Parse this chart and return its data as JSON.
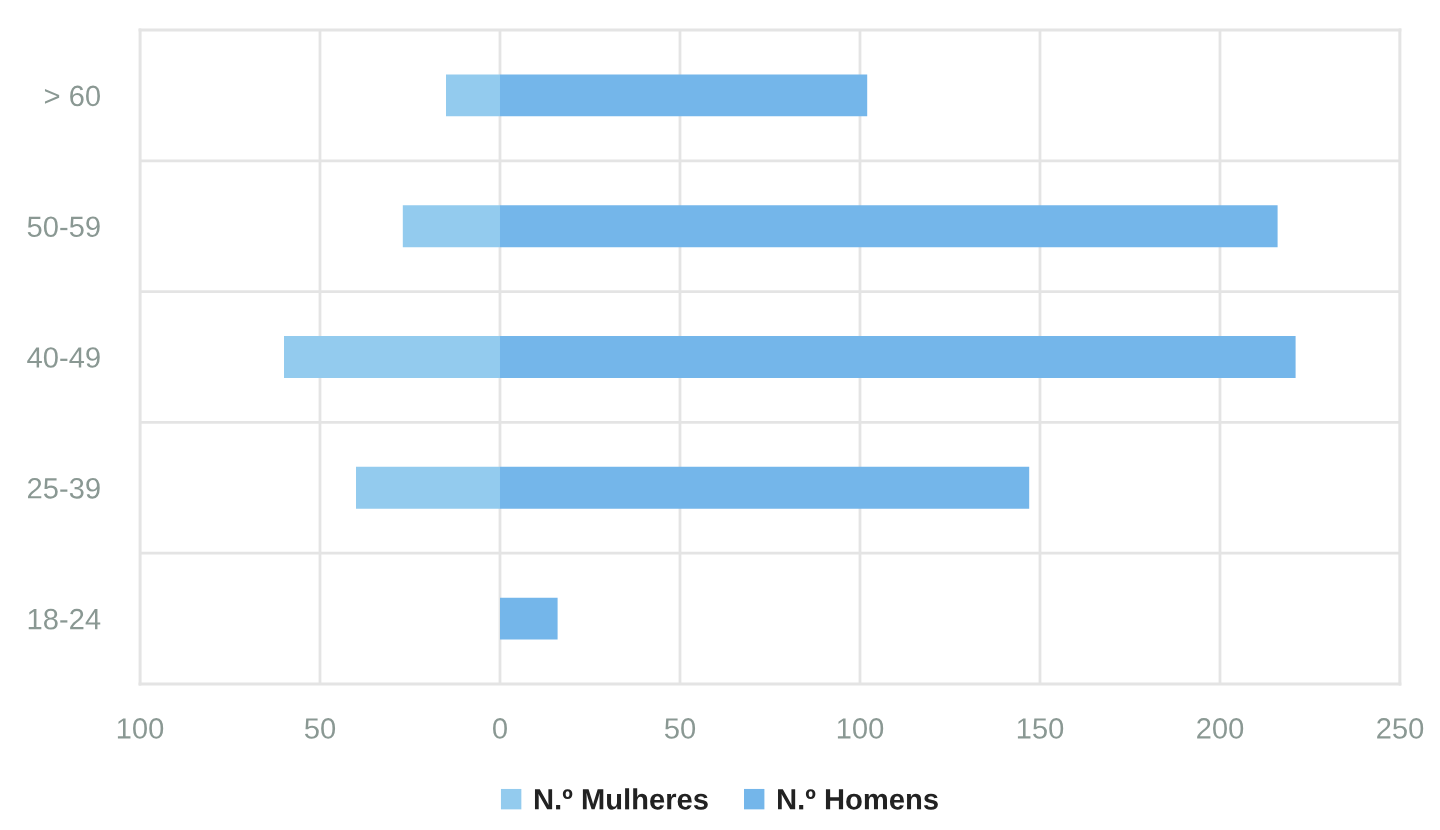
{
  "chart_data": {
    "type": "bar",
    "orientation": "horizontal",
    "stacked": true,
    "categories": [
      "> 60",
      "50-59",
      "40-49",
      "25-39",
      "18-24"
    ],
    "series": [
      {
        "name": "N.º Mulheres",
        "color": "#93cbee",
        "values": [
          -15,
          -27,
          -60,
          -40,
          null
        ]
      },
      {
        "name": "N.º Homens",
        "color": "#74b6ea",
        "values": [
          102,
          216,
          221,
          147,
          16
        ]
      }
    ],
    "xlim": [
      -100,
      250
    ],
    "xticks": [
      {
        "value": -100,
        "label": "100"
      },
      {
        "value": -50,
        "label": "50"
      },
      0,
      50,
      100,
      150,
      200,
      250
    ],
    "grid": true,
    "legend": "bottom"
  }
}
